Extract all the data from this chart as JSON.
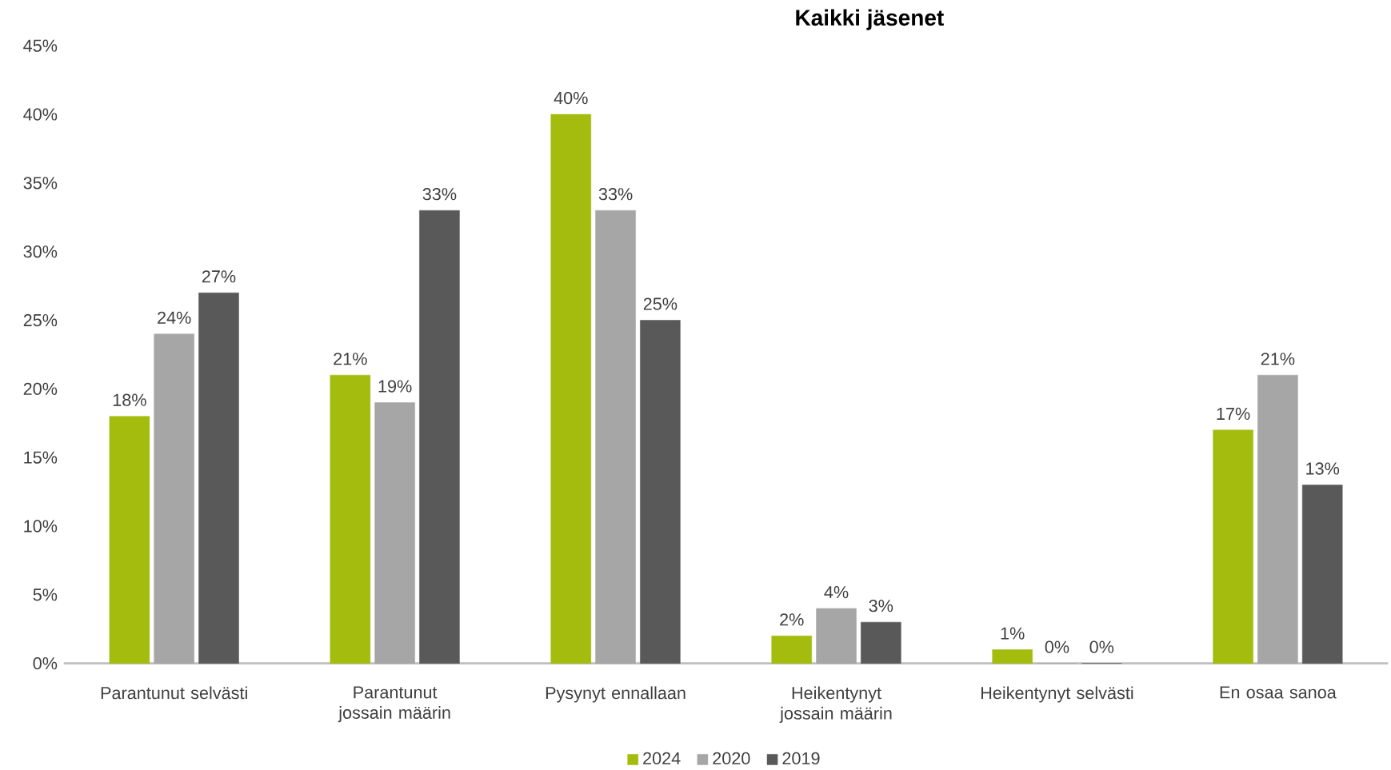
{
  "chart_data": {
    "type": "bar",
    "title": "Kaikki jäsenet",
    "categories": [
      "Parantunut selvästi",
      "Parantunut jossain määrin",
      "Pysynyt ennallaan",
      "Heikentynyt jossain määrin",
      "Heikentynyt selvästi",
      "En osaa sanoa"
    ],
    "series": [
      {
        "name": "2024",
        "color": "#a3bc0d",
        "values": [
          18,
          21,
          40,
          2,
          1,
          17
        ],
        "value_labels": [
          "18%",
          "21%",
          "40%",
          "2%",
          "1%",
          "17%"
        ]
      },
      {
        "name": "2020",
        "color": "#a6a6a6",
        "values": [
          24,
          19,
          33,
          4,
          0,
          21
        ],
        "value_labels": [
          "24%",
          "19%",
          "33%",
          "4%",
          "0%",
          "21%"
        ]
      },
      {
        "name": "2019",
        "color": "#595959",
        "values": [
          27,
          33,
          25,
          3,
          0,
          13
        ],
        "value_labels": [
          "27%",
          "33%",
          "25%",
          "3%",
          "0%",
          "13%"
        ]
      }
    ],
    "ylim": [
      0,
      45
    ],
    "yticks": [
      {
        "value": 0,
        "label": "0%"
      },
      {
        "value": 5,
        "label": "5%"
      },
      {
        "value": 10,
        "label": "10%"
      },
      {
        "value": 15,
        "label": "15%"
      },
      {
        "value": 20,
        "label": "20%"
      },
      {
        "value": 25,
        "label": "25%"
      },
      {
        "value": 30,
        "label": "30%"
      },
      {
        "value": 35,
        "label": "35%"
      },
      {
        "value": 40,
        "label": "40%"
      },
      {
        "value": 45,
        "label": "45%"
      }
    ],
    "legend": "bottom",
    "grid": false
  }
}
